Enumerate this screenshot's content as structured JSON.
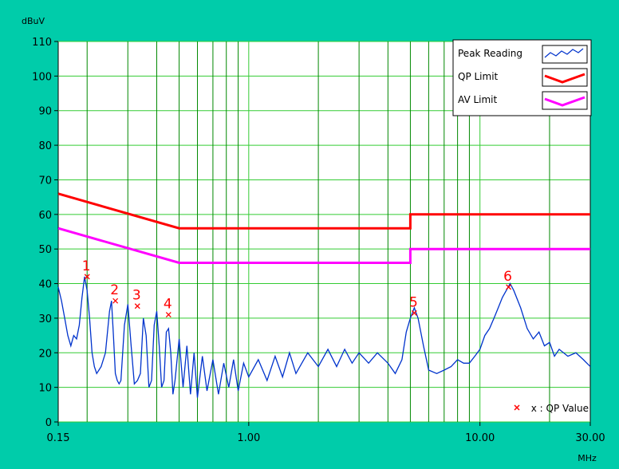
{
  "chart_data": {
    "type": "line",
    "title": "",
    "xlabel": "MHz",
    "ylabel": "dBuV",
    "x_scale": "log",
    "xlim": [
      0.15,
      30
    ],
    "ylim": [
      0,
      110
    ],
    "grid": true,
    "x_tick_labels": [
      {
        "value": 0.15,
        "label": "0.15"
      },
      {
        "value": 1,
        "label": "1.00"
      },
      {
        "value": 10,
        "label": "10.00"
      },
      {
        "value": 30,
        "label": "30.00"
      }
    ],
    "y_ticks": [
      0,
      10,
      20,
      30,
      40,
      50,
      60,
      70,
      80,
      90,
      100,
      110
    ],
    "legend_position": "top-right",
    "series": [
      {
        "name": "Peak Reading",
        "color": "#0033cc",
        "x": [
          0.15,
          0.155,
          0.16,
          0.165,
          0.17,
          0.175,
          0.18,
          0.185,
          0.19,
          0.195,
          0.2,
          0.205,
          0.21,
          0.215,
          0.22,
          0.225,
          0.23,
          0.24,
          0.25,
          0.255,
          0.26,
          0.265,
          0.27,
          0.275,
          0.28,
          0.29,
          0.3,
          0.31,
          0.32,
          0.33,
          0.34,
          0.35,
          0.36,
          0.37,
          0.38,
          0.39,
          0.4,
          0.41,
          0.42,
          0.43,
          0.44,
          0.45,
          0.46,
          0.47,
          0.48,
          0.5,
          0.52,
          0.54,
          0.56,
          0.58,
          0.6,
          0.63,
          0.66,
          0.7,
          0.74,
          0.78,
          0.82,
          0.86,
          0.9,
          0.95,
          1.0,
          1.1,
          1.2,
          1.3,
          1.4,
          1.5,
          1.6,
          1.8,
          2.0,
          2.2,
          2.4,
          2.6,
          2.8,
          3.0,
          3.3,
          3.6,
          4.0,
          4.3,
          4.6,
          4.8,
          5.0,
          5.2,
          5.4,
          5.7,
          6.0,
          6.5,
          7.0,
          7.5,
          8.0,
          8.5,
          9.0,
          9.5,
          10.0,
          10.5,
          11.0,
          11.5,
          12.0,
          12.5,
          13.0,
          13.5,
          14.0,
          15.0,
          16.0,
          17.0,
          18.0,
          19.0,
          20.0,
          21.0,
          22.0,
          24.0,
          26.0,
          27.0,
          28.0,
          29.0,
          30.0
        ],
        "values": [
          39,
          35,
          30,
          25,
          22,
          25,
          24,
          28,
          36,
          42,
          38,
          30,
          20,
          16,
          14,
          15,
          16,
          20,
          32,
          35,
          25,
          14,
          12,
          11,
          12,
          28,
          34,
          22,
          11,
          12,
          14,
          30,
          25,
          10,
          12,
          28,
          32,
          22,
          10,
          12,
          26,
          27,
          20,
          8,
          12,
          24,
          10,
          22,
          8,
          20,
          7,
          19,
          9,
          18,
          8,
          17,
          10,
          18,
          9,
          17,
          13,
          18,
          12,
          19,
          13,
          20,
          14,
          20,
          16,
          21,
          16,
          21,
          17,
          20,
          17,
          20,
          17,
          14,
          18,
          26,
          30,
          33,
          30,
          22,
          15,
          14,
          15,
          16,
          18,
          17,
          17,
          19,
          21,
          25,
          27,
          30,
          33,
          36,
          38,
          40,
          38,
          33,
          27,
          24,
          26,
          22,
          23,
          19,
          21,
          19,
          20,
          19,
          18,
          17,
          16
        ]
      },
      {
        "name": "QP Limit",
        "color": "#ff0000",
        "x": [
          0.15,
          0.5,
          5,
          5,
          30
        ],
        "values": [
          66,
          56,
          56,
          60,
          60
        ]
      },
      {
        "name": "AV Limit",
        "color": "#ff00ff",
        "x": [
          0.15,
          0.5,
          5,
          5,
          30
        ],
        "values": [
          56,
          46,
          46,
          50,
          50
        ]
      }
    ],
    "qp_points": {
      "marker": "x",
      "color": "#ff0000",
      "points": [
        {
          "label": "1",
          "x": 0.2,
          "value": 42
        },
        {
          "label": "2",
          "x": 0.265,
          "value": 35
        },
        {
          "label": "3",
          "x": 0.33,
          "value": 33.5
        },
        {
          "label": "4",
          "x": 0.45,
          "value": 31
        },
        {
          "label": "5",
          "x": 5.2,
          "value": 31.5
        },
        {
          "label": "6",
          "x": 13.3,
          "value": 39
        }
      ]
    },
    "qp_note": "x : QP Value"
  },
  "colors": {
    "panel": "#00ccaa",
    "plot_bg": "#ffffff",
    "grid_major": "#008800",
    "grid_minor": "#33cc33"
  }
}
